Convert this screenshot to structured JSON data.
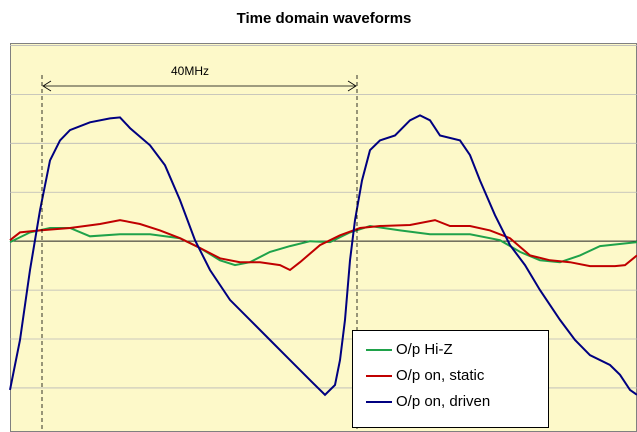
{
  "chart_data": {
    "type": "line",
    "title": "Time domain waveforms",
    "annotation": "40MHz",
    "xlim": [
      0,
      627
    ],
    "ylim": [
      -3.9,
      4.05
    ],
    "yticks": [
      -3,
      -2,
      -1,
      0,
      1,
      2,
      3,
      4
    ],
    "grid": true,
    "legend": "lower right",
    "series": [
      {
        "name": "O/p Hi-Z",
        "color": "#1fa24a",
        "x": [
          0,
          20,
          40,
          60,
          80,
          110,
          140,
          170,
          190,
          210,
          225,
          240,
          260,
          280,
          300,
          320,
          340,
          360,
          390,
          420,
          460,
          490,
          510,
          530,
          550,
          570,
          590,
          627
        ],
        "values": [
          -0.02,
          0.18,
          0.27,
          0.27,
          0.1,
          0.14,
          0.14,
          0.06,
          -0.14,
          -0.39,
          -0.49,
          -0.43,
          -0.22,
          -0.1,
          0,
          -0.02,
          0.18,
          0.31,
          0.22,
          0.14,
          0.14,
          0.02,
          -0.22,
          -0.39,
          -0.43,
          -0.29,
          -0.1,
          -0.02
        ]
      },
      {
        "name": "O/p on, static",
        "color": "#c00000",
        "x": [
          0,
          10,
          30,
          60,
          90,
          110,
          130,
          150,
          170,
          190,
          210,
          230,
          250,
          270,
          280,
          290,
          310,
          330,
          350,
          370,
          400,
          425,
          440,
          460,
          480,
          500,
          520,
          540,
          560,
          580,
          605,
          615,
          627
        ],
        "values": [
          0.02,
          0.18,
          0.22,
          0.27,
          0.35,
          0.43,
          0.35,
          0.22,
          0.06,
          -0.14,
          -0.35,
          -0.43,
          -0.43,
          -0.49,
          -0.59,
          -0.43,
          -0.08,
          0.12,
          0.27,
          0.31,
          0.33,
          0.43,
          0.31,
          0.31,
          0.22,
          0.06,
          -0.29,
          -0.39,
          -0.43,
          -0.51,
          -0.51,
          -0.49,
          -0.29
        ]
      },
      {
        "name": "O/p on, driven",
        "color": "#000080",
        "x": [
          0,
          10,
          20,
          30,
          40,
          50,
          60,
          80,
          100,
          110,
          120,
          140,
          155,
          170,
          185,
          200,
          220,
          240,
          260,
          280,
          300,
          315,
          325,
          330,
          335,
          340,
          345,
          352,
          360,
          370,
          385,
          400,
          410,
          420,
          430,
          450,
          460,
          470,
          485,
          500,
          515,
          530,
          550,
          565,
          580,
          600,
          610,
          620,
          627
        ],
        "values": [
          -3.04,
          -2.02,
          -0.59,
          0.63,
          1.65,
          2.06,
          2.27,
          2.43,
          2.51,
          2.53,
          2.31,
          1.96,
          1.55,
          0.84,
          0.02,
          -0.59,
          -1.2,
          -1.61,
          -2.02,
          -2.43,
          -2.84,
          -3.14,
          -2.94,
          -2.43,
          -1.61,
          -0.39,
          0.43,
          1.24,
          1.86,
          2.06,
          2.16,
          2.47,
          2.57,
          2.47,
          2.16,
          2.06,
          1.76,
          1.24,
          0.53,
          -0.08,
          -0.49,
          -1,
          -1.61,
          -2.02,
          -2.33,
          -2.53,
          -2.73,
          -3.04,
          -3.14
        ]
      }
    ]
  }
}
